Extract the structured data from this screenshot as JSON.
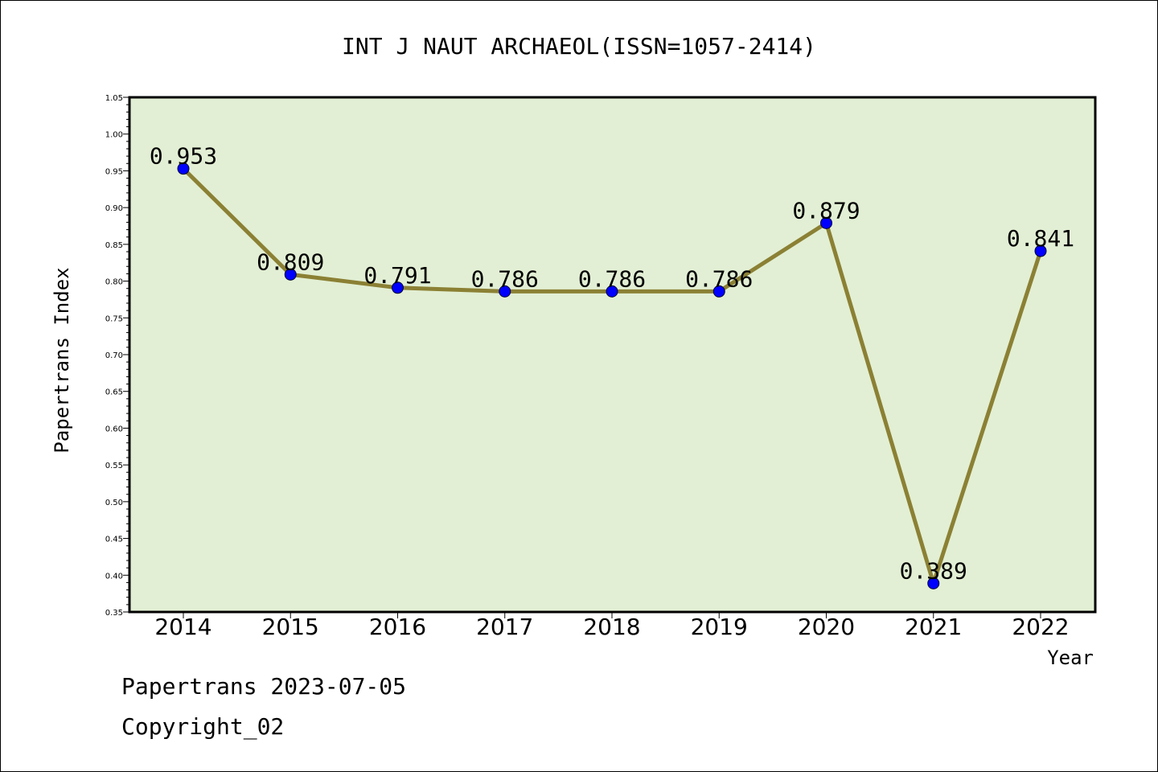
{
  "chart_data": {
    "type": "line",
    "title": "INT J NAUT ARCHAEOL(ISSN=1057-2414)",
    "xlabel": "Year",
    "ylabel": "Papertrans Index",
    "categories": [
      "2014",
      "2015",
      "2016",
      "2017",
      "2018",
      "2019",
      "2020",
      "2021",
      "2022"
    ],
    "values": [
      0.953,
      0.809,
      0.791,
      0.786,
      0.786,
      0.786,
      0.879,
      0.389,
      0.841
    ],
    "data_labels": [
      "0.953",
      "0.809",
      "0.791",
      "0.786",
      "0.786",
      "0.786",
      "0.879",
      "0.389",
      "0.841"
    ],
    "ylim": [
      0.35,
      1.05
    ],
    "yticks": [
      "0.35",
      "0.40",
      "0.45",
      "0.50",
      "0.55",
      "0.60",
      "0.65",
      "0.70",
      "0.75",
      "0.80",
      "0.85",
      "0.90",
      "0.95",
      "1.00",
      "1.05"
    ],
    "grid": false,
    "legend": "none",
    "colors": {
      "plot_background": "#e2efd4",
      "line": "#8b8034",
      "marker": "#0000ff"
    }
  },
  "footer": {
    "date_text": "Papertrans 2023-07-05",
    "copyright_text": "Copyright_02"
  }
}
